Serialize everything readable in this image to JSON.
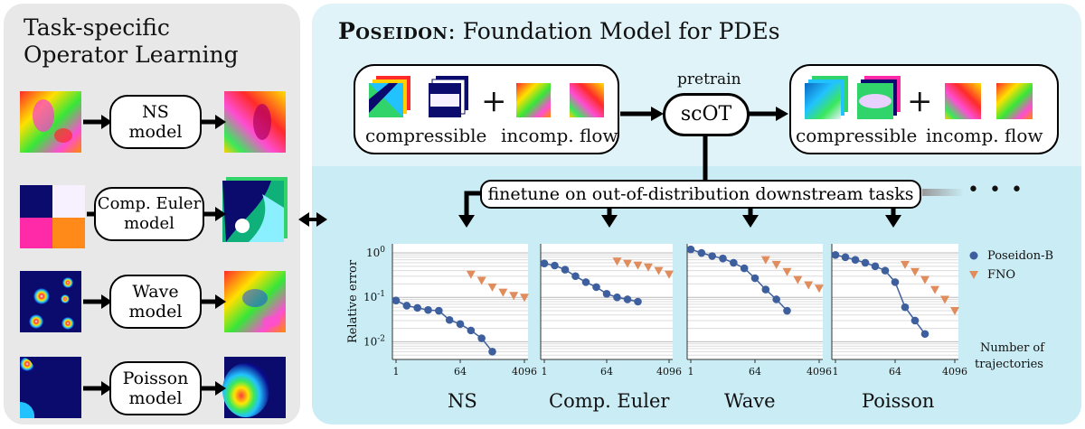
{
  "left": {
    "title_line1": "Task-specific",
    "title_line2": "Operator Learning",
    "models": [
      {
        "line1": "NS",
        "line2": "model"
      },
      {
        "line1": "Comp. Euler",
        "line2": "model"
      },
      {
        "line1": "Wave",
        "line2": "model"
      },
      {
        "line1": "Poisson",
        "line2": "model"
      }
    ]
  },
  "right": {
    "title_sc": "Poseidon",
    "title_rest": ": Foundation Model for PDEs",
    "pretrain_label": "pretrain",
    "center_node": "scOT",
    "left_box": {
      "label1": "compressible",
      "plus": "+",
      "label2": "incomp. flow"
    },
    "right_box": {
      "label1": "compressible",
      "plus": "+",
      "label2": "incomp. flow"
    },
    "finetune_label": "finetune on out-of-distribution downstream tasks",
    "ellipsis": "• • •"
  },
  "legend": {
    "items": [
      {
        "name": "Poseidon-B",
        "color": "#3e5f9d",
        "marker": "circle"
      },
      {
        "name": "FNO",
        "color": "#e08c5c",
        "marker": "triangle-down"
      }
    ],
    "x_note_line1": "Number of",
    "x_note_line2": "trajectories"
  },
  "chart_data": [
    {
      "type": "scatter",
      "title": "NS",
      "ylabel": "Relative error",
      "yscale": "log",
      "ylim": [
        0.003,
        1.5
      ],
      "xticks": [
        "1",
        "64",
        "4096"
      ],
      "yticks": [
        "10^0",
        "10^-1",
        "10^-2"
      ],
      "series": [
        {
          "name": "Poseidon-B",
          "x": [
            1,
            2,
            4,
            8,
            16,
            32,
            64,
            128,
            256,
            512
          ],
          "y": [
            0.085,
            0.065,
            0.058,
            0.052,
            0.05,
            0.031,
            0.025,
            0.018,
            0.012,
            0.006
          ],
          "fit": [
            [
              1,
              0.078
            ],
            [
              64,
              0.029
            ],
            [
              512,
              0.006
            ]
          ]
        },
        {
          "name": "FNO",
          "x": [
            128,
            256,
            512,
            1024,
            2048,
            4096
          ],
          "y": [
            0.33,
            0.24,
            0.17,
            0.13,
            0.11,
            0.1
          ]
        }
      ]
    },
    {
      "type": "scatter",
      "title": "Comp. Euler",
      "yscale": "log",
      "xticks": [
        "1",
        "64",
        "4096"
      ],
      "series": [
        {
          "name": "Poseidon-B",
          "x": [
            1,
            2,
            4,
            8,
            16,
            32,
            64,
            128,
            256,
            512
          ],
          "y": [
            0.58,
            0.52,
            0.42,
            0.3,
            0.22,
            0.17,
            0.12,
            0.1,
            0.09,
            0.08
          ]
        },
        {
          "name": "FNO",
          "x": [
            128,
            256,
            512,
            1024,
            2048,
            4096
          ],
          "y": [
            0.65,
            0.58,
            0.53,
            0.48,
            0.4,
            0.33
          ]
        }
      ]
    },
    {
      "type": "scatter",
      "title": "Wave",
      "yscale": "log",
      "xticks": [
        "1",
        "64",
        "4096"
      ],
      "series": [
        {
          "name": "Poseidon-B",
          "x": [
            1,
            2,
            4,
            8,
            16,
            32,
            64,
            128,
            256,
            512
          ],
          "y": [
            1.2,
            1.0,
            0.85,
            0.75,
            0.6,
            0.45,
            0.27,
            0.15,
            0.09,
            0.05
          ]
        },
        {
          "name": "FNO",
          "x": [
            128,
            256,
            512,
            1024,
            2048,
            4096
          ],
          "y": [
            0.7,
            0.55,
            0.38,
            0.25,
            0.19,
            0.16
          ]
        }
      ]
    },
    {
      "type": "scatter",
      "title": "Poisson",
      "yscale": "log",
      "xticks": [
        "1",
        "64",
        "4096"
      ],
      "series": [
        {
          "name": "Poseidon-B",
          "x": [
            1,
            2,
            4,
            8,
            16,
            32,
            64,
            128,
            256,
            512
          ],
          "y": [
            0.9,
            0.8,
            0.7,
            0.6,
            0.5,
            0.4,
            0.22,
            0.06,
            0.03,
            0.015
          ]
        },
        {
          "name": "FNO",
          "x": [
            128,
            256,
            512,
            1024,
            2048,
            4096
          ],
          "y": [
            0.55,
            0.38,
            0.25,
            0.15,
            0.09,
            0.05
          ]
        }
      ]
    }
  ]
}
